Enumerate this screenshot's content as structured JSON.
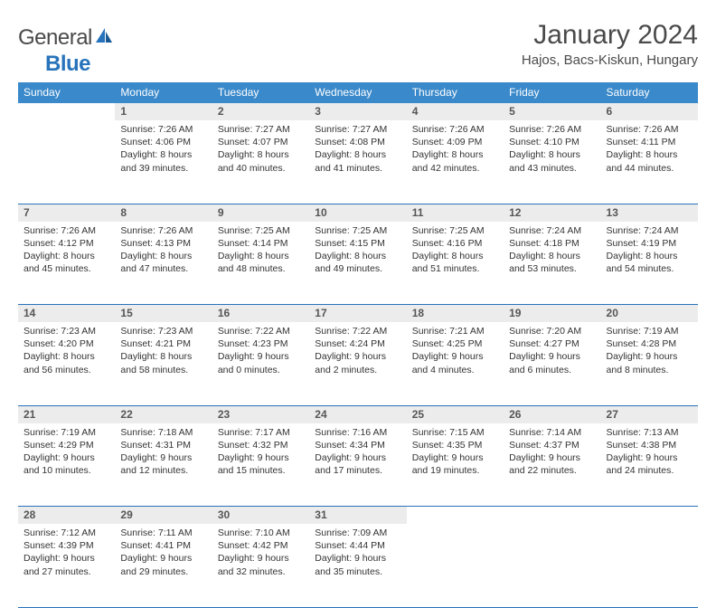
{
  "brand": {
    "part1": "General",
    "part2": "Blue"
  },
  "title": "January 2024",
  "location": "Hajos, Bacs-Kiskun, Hungary",
  "header_bg": "#3a89ca",
  "divider_color": "#2773bb",
  "daynum_bg": "#ececec",
  "text_color": "#333333",
  "days": [
    "Sunday",
    "Monday",
    "Tuesday",
    "Wednesday",
    "Thursday",
    "Friday",
    "Saturday"
  ],
  "weeks": [
    [
      null,
      {
        "n": "1",
        "sr": "7:26 AM",
        "ss": "4:06 PM",
        "dl": "8 hours and 39 minutes."
      },
      {
        "n": "2",
        "sr": "7:27 AM",
        "ss": "4:07 PM",
        "dl": "8 hours and 40 minutes."
      },
      {
        "n": "3",
        "sr": "7:27 AM",
        "ss": "4:08 PM",
        "dl": "8 hours and 41 minutes."
      },
      {
        "n": "4",
        "sr": "7:26 AM",
        "ss": "4:09 PM",
        "dl": "8 hours and 42 minutes."
      },
      {
        "n": "5",
        "sr": "7:26 AM",
        "ss": "4:10 PM",
        "dl": "8 hours and 43 minutes."
      },
      {
        "n": "6",
        "sr": "7:26 AM",
        "ss": "4:11 PM",
        "dl": "8 hours and 44 minutes."
      }
    ],
    [
      {
        "n": "7",
        "sr": "7:26 AM",
        "ss": "4:12 PM",
        "dl": "8 hours and 45 minutes."
      },
      {
        "n": "8",
        "sr": "7:26 AM",
        "ss": "4:13 PM",
        "dl": "8 hours and 47 minutes."
      },
      {
        "n": "9",
        "sr": "7:25 AM",
        "ss": "4:14 PM",
        "dl": "8 hours and 48 minutes."
      },
      {
        "n": "10",
        "sr": "7:25 AM",
        "ss": "4:15 PM",
        "dl": "8 hours and 49 minutes."
      },
      {
        "n": "11",
        "sr": "7:25 AM",
        "ss": "4:16 PM",
        "dl": "8 hours and 51 minutes."
      },
      {
        "n": "12",
        "sr": "7:24 AM",
        "ss": "4:18 PM",
        "dl": "8 hours and 53 minutes."
      },
      {
        "n": "13",
        "sr": "7:24 AM",
        "ss": "4:19 PM",
        "dl": "8 hours and 54 minutes."
      }
    ],
    [
      {
        "n": "14",
        "sr": "7:23 AM",
        "ss": "4:20 PM",
        "dl": "8 hours and 56 minutes."
      },
      {
        "n": "15",
        "sr": "7:23 AM",
        "ss": "4:21 PM",
        "dl": "8 hours and 58 minutes."
      },
      {
        "n": "16",
        "sr": "7:22 AM",
        "ss": "4:23 PM",
        "dl": "9 hours and 0 minutes."
      },
      {
        "n": "17",
        "sr": "7:22 AM",
        "ss": "4:24 PM",
        "dl": "9 hours and 2 minutes."
      },
      {
        "n": "18",
        "sr": "7:21 AM",
        "ss": "4:25 PM",
        "dl": "9 hours and 4 minutes."
      },
      {
        "n": "19",
        "sr": "7:20 AM",
        "ss": "4:27 PM",
        "dl": "9 hours and 6 minutes."
      },
      {
        "n": "20",
        "sr": "7:19 AM",
        "ss": "4:28 PM",
        "dl": "9 hours and 8 minutes."
      }
    ],
    [
      {
        "n": "21",
        "sr": "7:19 AM",
        "ss": "4:29 PM",
        "dl": "9 hours and 10 minutes."
      },
      {
        "n": "22",
        "sr": "7:18 AM",
        "ss": "4:31 PM",
        "dl": "9 hours and 12 minutes."
      },
      {
        "n": "23",
        "sr": "7:17 AM",
        "ss": "4:32 PM",
        "dl": "9 hours and 15 minutes."
      },
      {
        "n": "24",
        "sr": "7:16 AM",
        "ss": "4:34 PM",
        "dl": "9 hours and 17 minutes."
      },
      {
        "n": "25",
        "sr": "7:15 AM",
        "ss": "4:35 PM",
        "dl": "9 hours and 19 minutes."
      },
      {
        "n": "26",
        "sr": "7:14 AM",
        "ss": "4:37 PM",
        "dl": "9 hours and 22 minutes."
      },
      {
        "n": "27",
        "sr": "7:13 AM",
        "ss": "4:38 PM",
        "dl": "9 hours and 24 minutes."
      }
    ],
    [
      {
        "n": "28",
        "sr": "7:12 AM",
        "ss": "4:39 PM",
        "dl": "9 hours and 27 minutes."
      },
      {
        "n": "29",
        "sr": "7:11 AM",
        "ss": "4:41 PM",
        "dl": "9 hours and 29 minutes."
      },
      {
        "n": "30",
        "sr": "7:10 AM",
        "ss": "4:42 PM",
        "dl": "9 hours and 32 minutes."
      },
      {
        "n": "31",
        "sr": "7:09 AM",
        "ss": "4:44 PM",
        "dl": "9 hours and 35 minutes."
      },
      null,
      null,
      null
    ]
  ],
  "labels": {
    "sunrise": "Sunrise: ",
    "sunset": "Sunset: ",
    "daylight": "Daylight: "
  }
}
